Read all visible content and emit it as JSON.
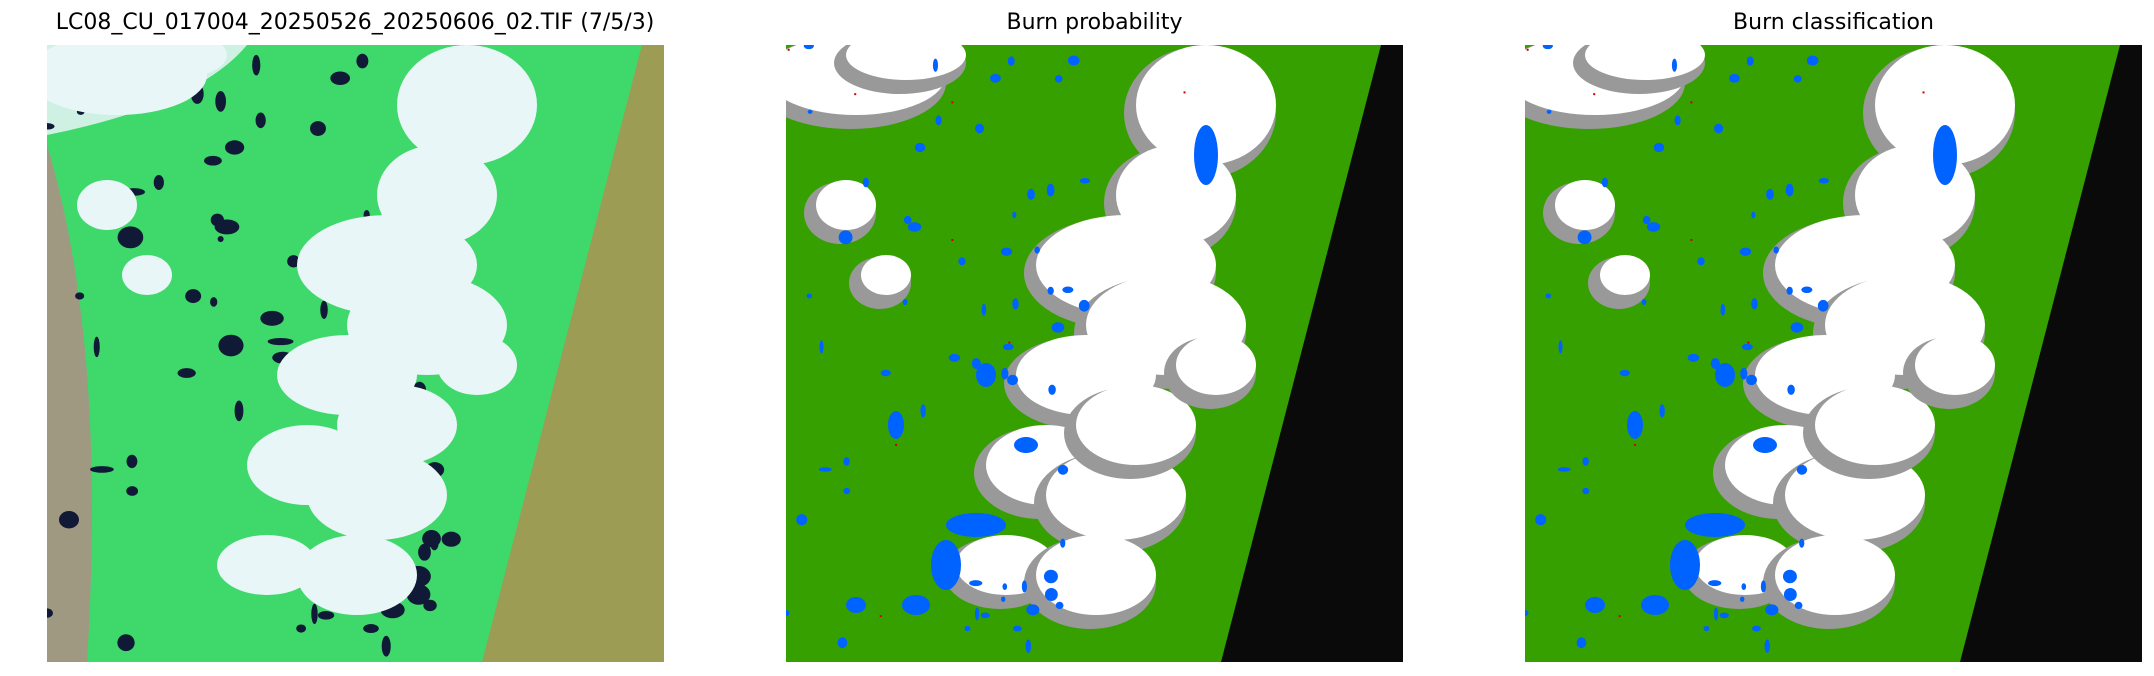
{
  "panels": [
    {
      "title": "LC08_CU_017004_20250526_20250606_02.TIF (7/5/3)"
    },
    {
      "title": "Burn probability"
    },
    {
      "title": "Burn classification"
    }
  ],
  "colors": {
    "rgb_vegetation": "#3fd86a",
    "rgb_bare": "#b98a88",
    "rgb_cloud": "#e8f6f8",
    "rgb_water": "#101a36",
    "rgb_nodata": "#9c9c55",
    "class_unburned": "#36a000",
    "class_water": "#0062ff",
    "class_cloud": "#ffffff",
    "class_shadow": "#999999",
    "class_nodata": "#0a0a0a",
    "class_burned": "#cc0000"
  }
}
